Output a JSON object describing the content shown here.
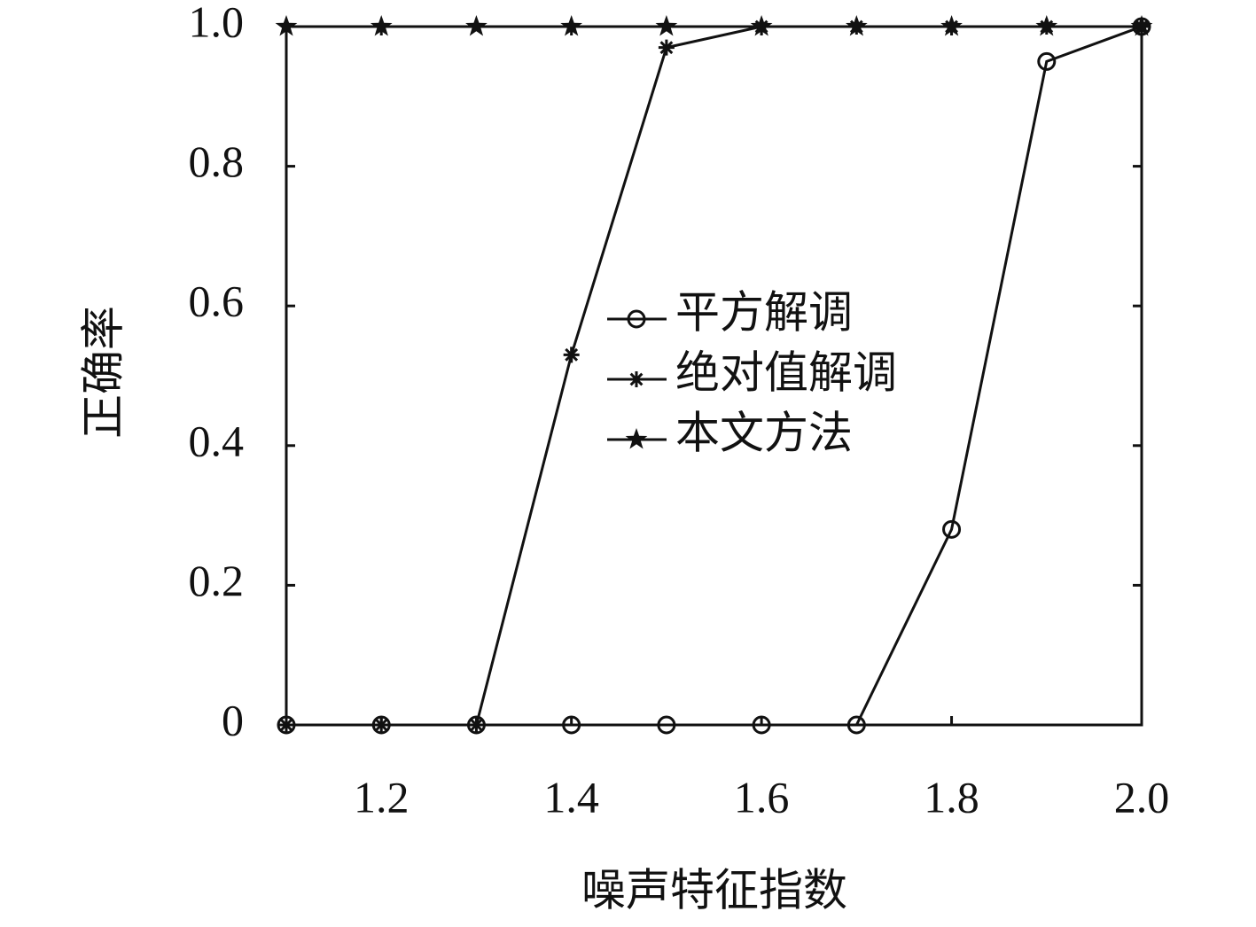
{
  "chart_data": {
    "type": "line",
    "x_label": "噪声特征指数",
    "y_label": "正确率",
    "x": [
      1.1,
      1.2,
      1.3,
      1.4,
      1.5,
      1.6,
      1.7,
      1.8,
      1.9,
      2.0
    ],
    "series": [
      {
        "name": "平方解调",
        "color": "#111111",
        "marker": "circle",
        "values": [
          0,
          0,
          0,
          0,
          0,
          0,
          0,
          0.28,
          0.95,
          1.0
        ]
      },
      {
        "name": "绝对值解调",
        "color": "#111111",
        "marker": "asterisk",
        "values": [
          0,
          0,
          0,
          0.53,
          0.97,
          1.0,
          1.0,
          1.0,
          1.0,
          1.0
        ]
      },
      {
        "name": "本文方法",
        "color": "#111111",
        "marker": "star",
        "values": [
          1.0,
          1.0,
          1.0,
          1.0,
          1.0,
          1.0,
          1.0,
          1.0,
          1.0,
          1.0
        ]
      }
    ],
    "xlim": [
      1.1,
      2.0
    ],
    "ylim": [
      0,
      1.0
    ],
    "xticks": [
      1.2,
      1.4,
      1.6,
      1.8,
      {
        "value": 2.0,
        "label": "2.0"
      }
    ],
    "yticks": [
      0,
      0.2,
      0.4,
      0.6,
      0.8,
      {
        "value": 1.0,
        "label": "1.0"
      }
    ],
    "grid": false
  }
}
